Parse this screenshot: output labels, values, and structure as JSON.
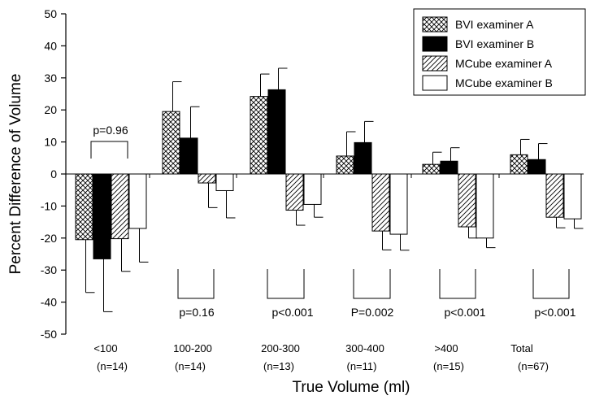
{
  "chart_data": {
    "type": "bar",
    "title": "",
    "xlabel": "True Volume (ml)",
    "ylabel": "Percent Difference of Volume",
    "ylim": [
      -50,
      50
    ],
    "yticks": [
      50,
      40,
      30,
      20,
      10,
      0,
      -10,
      -20,
      -30,
      -40,
      -50
    ],
    "categories": [
      "<100",
      "100-200",
      "200-300",
      "300-400",
      ">400",
      "Total"
    ],
    "category_counts": [
      "(n=14)",
      "(n=14)",
      "(n=13)",
      "(n=11)",
      "(n=15)",
      "(n=67)"
    ],
    "series": [
      {
        "name": "BVI examiner A",
        "pattern": "crosshatch",
        "values": [
          -20.5,
          19.5,
          24.2,
          5.6,
          3.0,
          6.0
        ],
        "errors": [
          16.5,
          9.3,
          7.0,
          7.6,
          3.8,
          4.8
        ]
      },
      {
        "name": "BVI examiner B",
        "pattern": "solid",
        "values": [
          -26.5,
          11.2,
          26.3,
          9.8,
          4.0,
          4.5
        ],
        "errors": [
          16.5,
          9.8,
          6.7,
          6.6,
          4.2,
          5.0
        ]
      },
      {
        "name": "MCube examiner A",
        "pattern": "diagonal",
        "values": [
          -20.2,
          -2.8,
          -11.3,
          -17.8,
          -16.5,
          -13.5
        ],
        "errors": [
          10.2,
          7.7,
          4.7,
          5.9,
          3.5,
          3.3
        ]
      },
      {
        "name": "MCube examiner B",
        "pattern": "open",
        "values": [
          -17.0,
          -5.2,
          -9.5,
          -18.8,
          -20.0,
          -14.0
        ],
        "errors": [
          10.5,
          8.5,
          4.0,
          5.0,
          3.0,
          3.0
        ]
      }
    ],
    "pvalues": [
      "p=0.96",
      "p=0.16",
      "p<0.001",
      "P=0.002",
      "p<0.001",
      "p<0.001"
    ],
    "legend_position": "top-right",
    "grid": false
  }
}
